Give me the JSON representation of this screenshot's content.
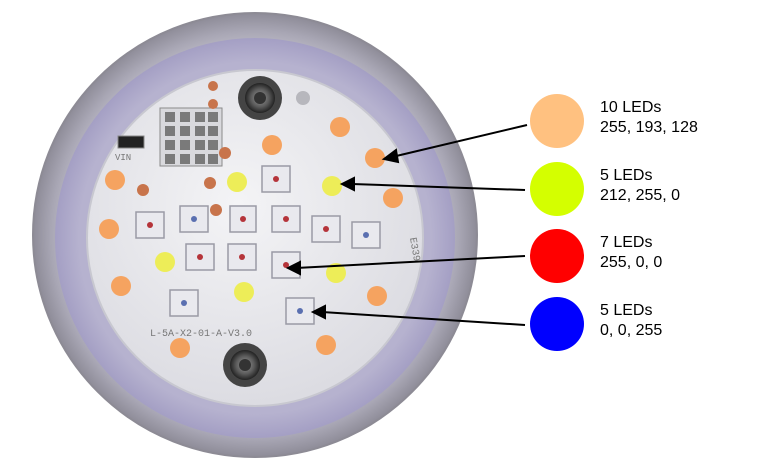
{
  "legend": [
    {
      "count_label": "10 LEDs",
      "rgb_label": "255, 193, 128",
      "color": "#ffc180"
    },
    {
      "count_label": "5 LEDs",
      "rgb_label": "212, 255, 0",
      "color": "#d4ff00"
    },
    {
      "count_label": "7 LEDs",
      "rgb_label": "255, 0, 0",
      "color": "#ff0000"
    },
    {
      "count_label": "5 LEDs",
      "rgb_label": "0, 0, 255",
      "color": "#0000ff"
    }
  ],
  "board": {
    "silkscreen_bottom": "L-5A-X2-01-A-V3.0",
    "silkscreen_side": "E339",
    "silkscreen_top": "VIN"
  }
}
